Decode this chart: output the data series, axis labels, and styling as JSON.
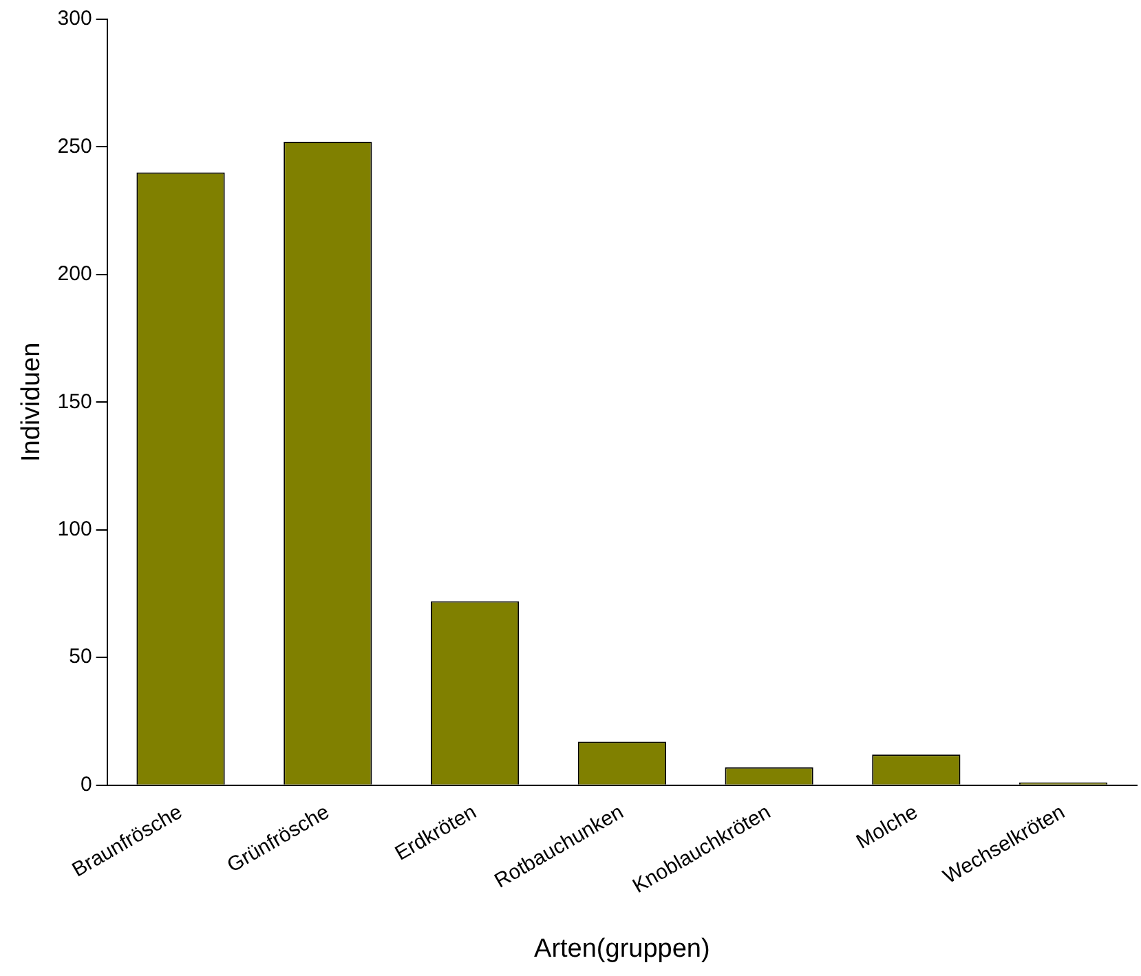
{
  "chart_data": {
    "type": "bar",
    "xlabel": "Arten(gruppen)",
    "ylabel": "Individuen",
    "categories": [
      "Braunfrösche",
      "Grünfrösche",
      "Erdkröten",
      "Rotbauchunken",
      "Knoblauchkröten",
      "Molche",
      "Wechselkröten"
    ],
    "values": [
      240,
      252,
      72,
      17,
      7,
      12,
      1
    ],
    "color": "#808000",
    "ylim": [
      0,
      300
    ],
    "yticks": [
      0,
      50,
      100,
      150,
      200,
      250,
      300
    ],
    "grid": false,
    "legend": false
  }
}
